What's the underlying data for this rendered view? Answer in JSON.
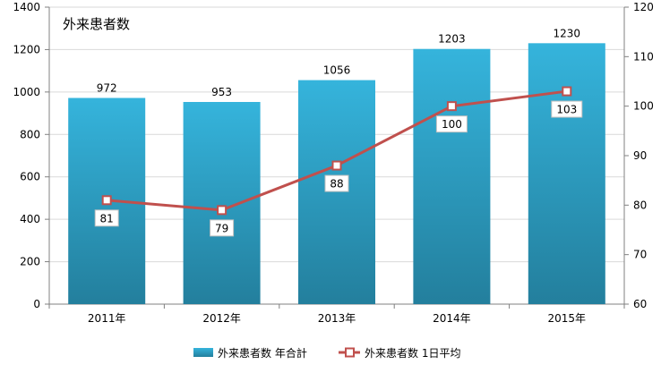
{
  "chart_data": {
    "type": "bar",
    "title": "外来患者数",
    "categories": [
      "2011年",
      "2012年",
      "2013年",
      "2014年",
      "2015年"
    ],
    "series": [
      {
        "name": "外来患者数 年合計",
        "type": "bar",
        "axis": "left",
        "values": [
          972,
          953,
          1056,
          1203,
          1230
        ],
        "color": "#2a9fc4",
        "color_top": "#35b4dc",
        "color_bottom": "#237f9d"
      },
      {
        "name": "外来患者数 1日平均",
        "type": "line",
        "axis": "right",
        "values": [
          81,
          79,
          88,
          100,
          103
        ],
        "color": "#c0504d"
      }
    ],
    "y_left": {
      "min": 0,
      "max": 1400,
      "ticks": [
        0,
        200,
        400,
        600,
        800,
        1000,
        1200,
        1400
      ]
    },
    "y_right": {
      "min": 60,
      "max": 120,
      "ticks": [
        60,
        70,
        80,
        90,
        100,
        110,
        120
      ]
    },
    "grid": true,
    "legend_position": "bottom"
  }
}
